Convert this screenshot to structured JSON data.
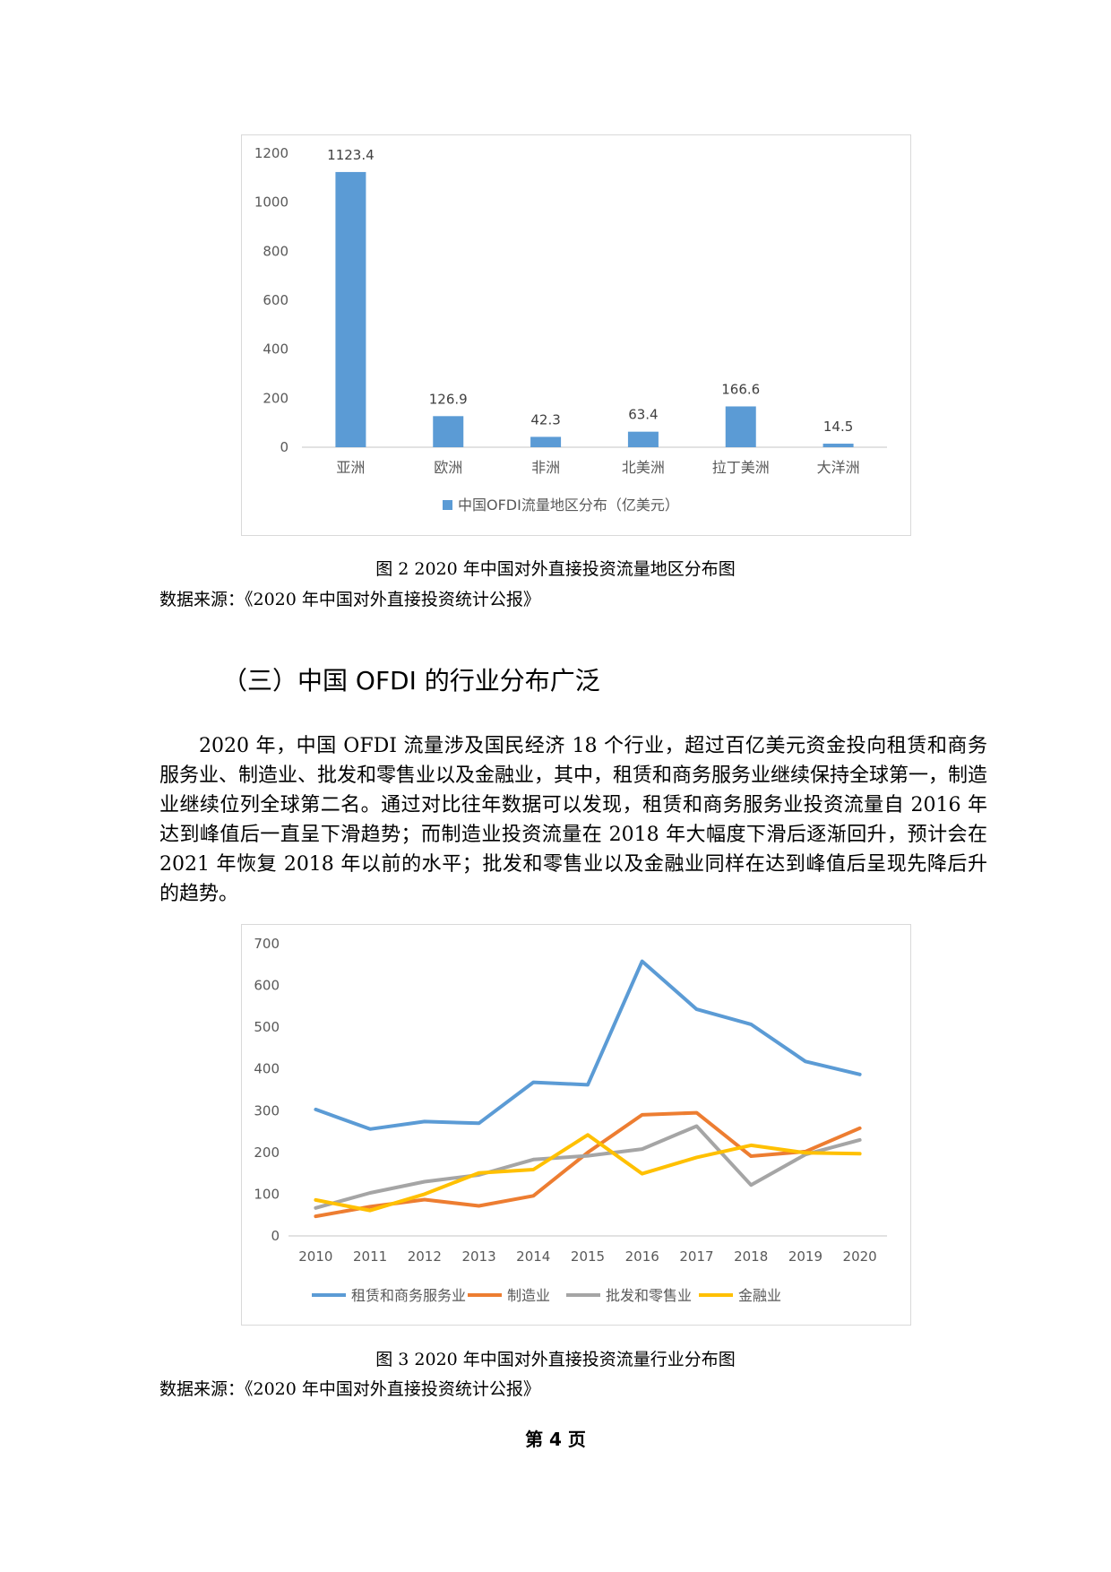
{
  "figure2": {
    "caption": "图 2 2020 年中国对外直接投资流量地区分布图",
    "source": "数据来源：《2020 年中国对外直接投资统计公报》"
  },
  "section": {
    "heading": "（三）中国 OFDI 的行业分布广泛",
    "paragraph": "2020 年，中国 OFDI 流量涉及国民经济 18 个行业，超过百亿美元资金投向租赁和商务服务业、制造业、批发和零售业以及金融业，其中，租赁和商务服务业继续保持全球第一，制造业继续位列全球第二名。通过对比往年数据可以发现，租赁和商务服务业投资流量自 2016 年达到峰值后一直呈下滑趋势；而制造业投资流量在 2018 年大幅度下滑后逐渐回升，预计会在 2021 年恢复 2018 年以前的水平；批发和零售业以及金融业同样在达到峰值后呈现先降后升的趋势。"
  },
  "figure3": {
    "caption": "图 3 2020 年中国对外直接投资流量行业分布图",
    "source": "数据来源：《2020 年中国对外直接投资统计公报》"
  },
  "page_number": "第 4 页",
  "chart_data": [
    {
      "type": "bar",
      "title": "",
      "categories": [
        "亚洲",
        "欧洲",
        "非洲",
        "北美洲",
        "拉丁美洲",
        "大洋洲"
      ],
      "series": [
        {
          "name": "中国OFDI流量地区分布（亿美元）",
          "values": [
            1123.4,
            126.9,
            42.3,
            63.4,
            166.6,
            14.5
          ],
          "color": "#5b9bd5"
        }
      ],
      "data_labels": [
        "1123.4",
        "126.9",
        "42.3",
        "63.4",
        "166.6",
        "14.5"
      ],
      "ylim": [
        0,
        1200
      ],
      "yticks": [
        0,
        200,
        400,
        600,
        800,
        1000,
        1200
      ],
      "grid": false,
      "legend": "bottom"
    },
    {
      "type": "line",
      "title": "",
      "x": [
        "2010",
        "2011",
        "2012",
        "2013",
        "2014",
        "2015",
        "2016",
        "2017",
        "2018",
        "2019",
        "2020"
      ],
      "series": [
        {
          "name": "租赁和商务服务业",
          "values": [
            303,
            256,
            274,
            270,
            368,
            362,
            658,
            543,
            507,
            418,
            387
          ],
          "color": "#5b9bd5"
        },
        {
          "name": "制造业",
          "values": [
            47,
            70,
            87,
            72,
            96,
            200,
            290,
            295,
            191,
            202,
            258
          ],
          "color": "#ed7d31"
        },
        {
          "name": "批发和零售业",
          "values": [
            67,
            103,
            130,
            146,
            183,
            192,
            208,
            263,
            122,
            195,
            230
          ],
          "color": "#a5a5a5"
        },
        {
          "name": "金融业",
          "values": [
            86,
            61,
            100,
            151,
            159,
            242,
            149,
            188,
            217,
            199,
            197
          ],
          "color": "#ffc000"
        }
      ],
      "ylim": [
        0,
        700
      ],
      "yticks": [
        0,
        100,
        200,
        300,
        400,
        500,
        600,
        700
      ],
      "grid": false,
      "legend": "bottom"
    }
  ]
}
